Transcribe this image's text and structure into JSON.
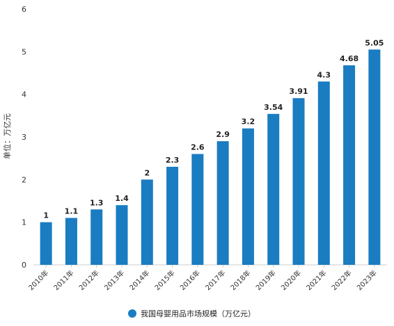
{
  "chart_data": {
    "type": "bar",
    "categories": [
      "2010年",
      "2011年",
      "2012年",
      "2013年",
      "2014年",
      "2015年",
      "2016年",
      "2017年",
      "2018年",
      "2019年",
      "2020年",
      "2021年",
      "2022年",
      "2023年"
    ],
    "series": [
      {
        "name": "我国母婴用品市场规模（万亿元）",
        "values": [
          1,
          1.1,
          1.3,
          1.4,
          2,
          2.3,
          2.6,
          2.9,
          3.2,
          3.54,
          3.91,
          4.3,
          4.68,
          5.05
        ]
      }
    ],
    "data_labels": [
      "1",
      "1.1",
      "1.3",
      "1.4",
      "2",
      "2.3",
      "2.6",
      "2.9",
      "3.2",
      "3.54",
      "3.91",
      "4.3",
      "4.68",
      "5.05"
    ],
    "yticks": [
      "0",
      "1",
      "2",
      "3",
      "4",
      "5",
      "6"
    ],
    "ylim": [
      0,
      6
    ],
    "ylabel": "单位：万亿元",
    "xlabel": "",
    "legend_position": "bottom",
    "bar_color": "#1a7cc1",
    "grid": false
  }
}
